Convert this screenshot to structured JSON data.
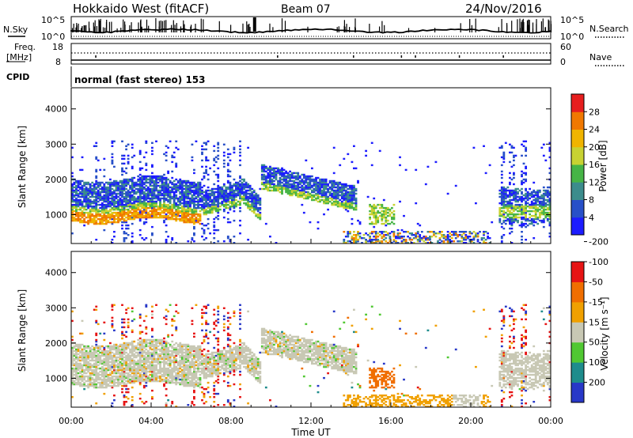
{
  "header": {
    "radar": "Hokkaido West (fitACF)",
    "beam": "Beam 07",
    "date": "24/Nov/2016"
  },
  "top_panels": {
    "nsky_label": "N.Sky",
    "nsearch_label": "N.Search",
    "noise_ticks": [
      "10^5",
      "10^0"
    ],
    "freq_label_1": "Freq.",
    "freq_label_2": "[MHz]",
    "freq_ticks": [
      "18",
      "8"
    ],
    "nave_label": "Nave",
    "nave_ticks": [
      "60",
      "0"
    ],
    "cpid_label": "CPID",
    "cpid_text": "normal (fast stereo) 153"
  },
  "colors": {
    "power": [
      "#1c1cff",
      "#2850c8",
      "#3c8c8c",
      "#46b446",
      "#c8d232",
      "#f0b400",
      "#f07800",
      "#e61e1e"
    ],
    "velocity": [
      "#2838c8",
      "#1e8c8c",
      "#50c832",
      "#c8c8b4",
      "#f0a000",
      "#f06e00",
      "#e61414"
    ]
  },
  "chart_data": [
    {
      "type": "heatmap",
      "name": "Power",
      "ylabel": "Slant Range [km]",
      "ylim": [
        180,
        4600
      ],
      "yticks": [
        "1000",
        "2000",
        "3000",
        "4000"
      ],
      "xlim_hours": [
        0,
        24
      ],
      "colorbar_label": "Power [dB]",
      "colorbar_ticks": [
        "4",
        "8",
        "12",
        "16",
        "20",
        "24",
        "28"
      ],
      "colorbar_range": [
        0,
        30
      ]
    },
    {
      "type": "heatmap",
      "name": "Velocity",
      "ylabel": "Slant Range [km]",
      "ylim": [
        180,
        4600
      ],
      "yticks": [
        "1000",
        "2000",
        "3000",
        "4000"
      ],
      "xlim_hours": [
        0,
        24
      ],
      "xticks": [
        "00:00",
        "04:00",
        "08:00",
        "12:00",
        "16:00",
        "20:00",
        "00:00"
      ],
      "xlabel": "Time UT",
      "colorbar_label": "Velocity [m s⁻¹]",
      "colorbar_ticks": [
        "200",
        "100",
        "50",
        "15",
        "-15",
        "-50",
        "-100",
        "-200"
      ]
    }
  ]
}
